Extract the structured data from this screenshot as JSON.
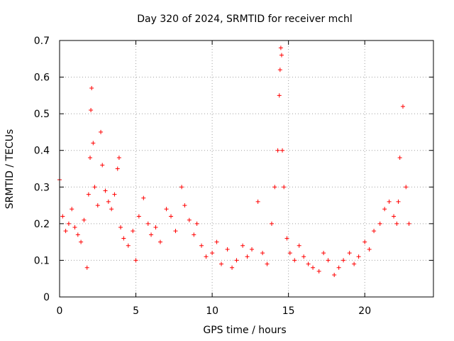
{
  "chart_data": {
    "type": "scatter",
    "title": "Day 320 of 2024, SRMTID for receiver mchl",
    "xlabel": "GPS time / hours",
    "ylabel": "SRMTID / TECUs",
    "xlim": [
      0,
      24.5
    ],
    "ylim": [
      0,
      0.7
    ],
    "x_ticks": [
      0,
      5,
      10,
      15,
      20
    ],
    "x_tick_labels": [
      "0",
      "5",
      "10",
      "15",
      "20"
    ],
    "y_ticks": [
      0,
      0.1,
      0.2,
      0.3,
      0.4,
      0.5,
      0.6,
      0.7
    ],
    "y_tick_labels": [
      "0",
      "0.1",
      "0.2",
      "0.3",
      "0.4",
      "0.5",
      "0.6",
      "0.7"
    ],
    "grid": true,
    "marker": "+",
    "color": "#ff0000",
    "series": [
      {
        "name": "mchl",
        "x": [
          0.0,
          0.2,
          0.4,
          0.6,
          0.8,
          1.0,
          1.2,
          1.4,
          1.6,
          1.8,
          1.9,
          2.0,
          2.05,
          2.1,
          2.2,
          2.3,
          2.5,
          2.7,
          2.8,
          3.0,
          3.2,
          3.4,
          3.6,
          3.8,
          3.9,
          4.0,
          4.2,
          4.5,
          4.8,
          5.0,
          5.2,
          5.5,
          5.8,
          6.0,
          6.3,
          6.6,
          7.0,
          7.3,
          7.6,
          8.0,
          8.2,
          8.5,
          8.8,
          9.0,
          9.3,
          9.6,
          10.0,
          10.3,
          10.6,
          11.0,
          11.3,
          11.6,
          12.0,
          12.3,
          12.6,
          13.0,
          13.3,
          13.6,
          13.9,
          14.1,
          14.3,
          14.4,
          14.45,
          14.5,
          14.55,
          14.6,
          14.7,
          14.9,
          15.1,
          15.4,
          15.7,
          16.0,
          16.3,
          16.6,
          17.0,
          17.3,
          17.6,
          18.0,
          18.3,
          18.6,
          19.0,
          19.3,
          19.6,
          20.0,
          20.3,
          20.6,
          21.0,
          21.3,
          21.6,
          21.9,
          22.1,
          22.2,
          22.3,
          22.5,
          22.7,
          22.9
        ],
        "y": [
          0.32,
          0.22,
          0.18,
          0.2,
          0.24,
          0.19,
          0.17,
          0.15,
          0.21,
          0.08,
          0.28,
          0.38,
          0.51,
          0.57,
          0.42,
          0.3,
          0.25,
          0.45,
          0.36,
          0.29,
          0.26,
          0.24,
          0.28,
          0.35,
          0.38,
          0.19,
          0.16,
          0.14,
          0.18,
          0.1,
          0.22,
          0.27,
          0.2,
          0.17,
          0.19,
          0.15,
          0.24,
          0.22,
          0.18,
          0.3,
          0.25,
          0.21,
          0.17,
          0.2,
          0.14,
          0.11,
          0.12,
          0.15,
          0.09,
          0.13,
          0.08,
          0.1,
          0.14,
          0.11,
          0.13,
          0.26,
          0.12,
          0.09,
          0.2,
          0.3,
          0.4,
          0.55,
          0.62,
          0.68,
          0.66,
          0.4,
          0.3,
          0.16,
          0.12,
          0.1,
          0.14,
          0.11,
          0.09,
          0.08,
          0.07,
          0.12,
          0.1,
          0.06,
          0.08,
          0.1,
          0.12,
          0.09,
          0.11,
          0.15,
          0.13,
          0.18,
          0.2,
          0.24,
          0.26,
          0.22,
          0.2,
          0.26,
          0.38,
          0.52,
          0.3,
          0.2
        ]
      }
    ]
  }
}
